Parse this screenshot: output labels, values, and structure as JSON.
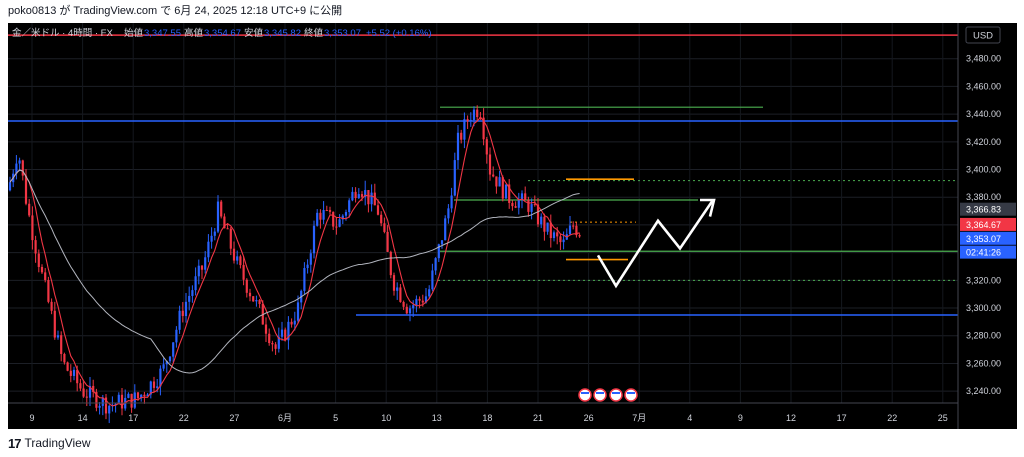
{
  "header": {
    "text": "poko0813 が TradingView.com で 6月 24, 2025 12:18 UTC+9 に公開"
  },
  "legend": {
    "symbol": "金／米ドル · 4時間 · FX",
    "open_label": "始値",
    "open": "3,347.55",
    "high_label": "高値",
    "high": "3,354.67",
    "low_label": "安値",
    "low": "3,345.82",
    "close_label": "終値",
    "close": "3,353.07",
    "change": "+5.52 (+0.16%)"
  },
  "currency_button": "USD",
  "footer": {
    "logo": "17",
    "brand": "TradingView"
  },
  "colors": {
    "bg": "#000000",
    "up": "#2962ff",
    "down": "#f23645",
    "ma_fast": "#f23645",
    "ma_slow": "#b2b5be",
    "green_line": "#4caf50",
    "blue_line": "#2962ff",
    "orange_line": "#ff9800",
    "arrow": "#ffffff"
  },
  "chart_data": {
    "type": "candlestick",
    "y_axis": {
      "min": 3230,
      "max": 3500,
      "ticks": [
        "3,240.00",
        "3,260.00",
        "3,280.00",
        "3,300.00",
        "3,320.00",
        "3,340.00",
        "3,360.00",
        "3,380.00",
        "3,400.00",
        "3,420.00",
        "3,440.00",
        "3,460.00",
        "3,480.00"
      ]
    },
    "x_axis": {
      "ticks": [
        "9",
        "14",
        "17",
        "22",
        "27",
        "6月",
        "5",
        "10",
        "13",
        "18",
        "21",
        "26",
        "7月",
        "4",
        "9",
        "12",
        "17",
        "22",
        "25"
      ]
    },
    "price_labels": {
      "p1": "3,366.83",
      "p2": "3,364.67",
      "p3": "3,353.07",
      "countdown": "02:41:26"
    },
    "levels": [
      {
        "name": "top-red-line",
        "price": 3497,
        "color": "red"
      },
      {
        "name": "blue-resistance",
        "price": 3435,
        "color": "blue"
      },
      {
        "name": "green-top",
        "price": 3445,
        "color": "green"
      },
      {
        "name": "green-mid",
        "price": 3378,
        "color": "green"
      },
      {
        "name": "green-support",
        "price": 3341,
        "color": "green"
      },
      {
        "name": "blue-support",
        "price": 3295,
        "color": "blue"
      },
      {
        "name": "orange-top",
        "price": 3393,
        "color": "orange"
      },
      {
        "name": "orange-bottom",
        "price": 3335,
        "color": "orange"
      },
      {
        "name": "dotted-upper",
        "price": 3392,
        "color": "green"
      },
      {
        "name": "dotted-lower",
        "price": 3320,
        "color": "green"
      }
    ]
  }
}
